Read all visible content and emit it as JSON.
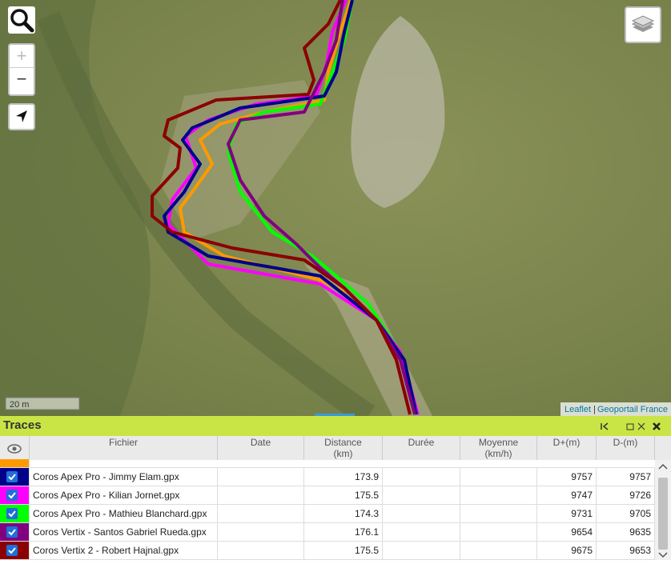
{
  "map": {
    "scale": "20 m",
    "zoom_in": "+",
    "zoom_out": "−",
    "attribution": {
      "leaflet": "Leaflet",
      "separator": "|",
      "provider": "Geoportail France"
    }
  },
  "panel": {
    "title": "Traces",
    "columns": [
      {
        "label": "Fichier"
      },
      {
        "label": "Date"
      },
      {
        "label": "Distance",
        "unit": "(km)"
      },
      {
        "label": "Durée"
      },
      {
        "label": "Moyenne",
        "unit": "(km/h)"
      },
      {
        "label": "D+(m)"
      },
      {
        "label": "D-(m)"
      }
    ],
    "rows": [
      {
        "file": "Coros Apex Pro - Jimmy Elam.gpx",
        "distance": 173.9,
        "d_plus": 9757,
        "d_minus": 9757,
        "color": "#00008b"
      },
      {
        "file": "Coros Apex Pro - Kilian Jornet.gpx",
        "distance": 175.5,
        "d_plus": 9747,
        "d_minus": 9726,
        "color": "#ff00ff"
      },
      {
        "file": "Coros Apex Pro - Mathieu Blanchard.gpx",
        "distance": 174.3,
        "d_plus": 9731,
        "d_minus": 9705,
        "color": "#00ff00"
      },
      {
        "file": "Coros Vertix - Santos Gabriel Rueda.gpx",
        "distance": 176.1,
        "d_plus": 9654,
        "d_minus": 9635,
        "color": "#800080"
      },
      {
        "file": "Coros Vertix 2 - Robert Hajnal.gpx",
        "distance": 175.5,
        "d_plus": 9675,
        "d_minus": 9653,
        "color": "#8b0000"
      }
    ]
  }
}
